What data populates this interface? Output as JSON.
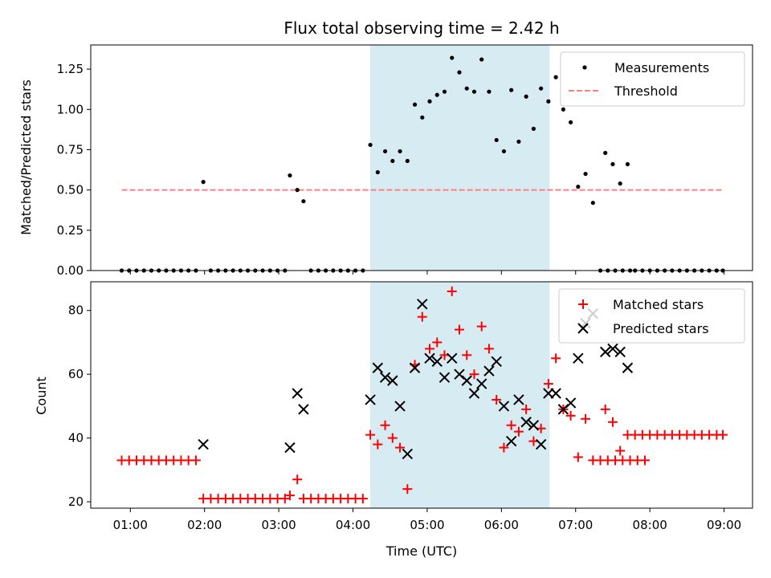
{
  "title": "Flux total observing time = 2.42 h",
  "xlabel": "Time (UTC)",
  "colors": {
    "highlight": "#add8e6",
    "measurement": "#000000",
    "threshold": "#ff7f7f",
    "matched": "#ff0000",
    "predicted": "#000000"
  },
  "chart_data": [
    {
      "type": "scatter",
      "ylabel": "Matched/Predicted stars",
      "xlim": [
        "00:28",
        "09:23"
      ],
      "ylim": [
        0,
        1.4
      ],
      "yticks": [
        0.0,
        0.25,
        0.5,
        0.75,
        1.0,
        1.25
      ],
      "ytick_labels": [
        "0.00",
        "0.25",
        "0.50",
        "0.75",
        "1.00",
        "1.25"
      ],
      "highlight_span": [
        "04:14",
        "06:39"
      ],
      "legend": {
        "position": "upper right",
        "entries": [
          "Measurements",
          "Threshold"
        ]
      },
      "threshold": {
        "name": "Threshold",
        "y": 0.5,
        "x_range": [
          "00:53",
          "08:59"
        ],
        "style": "dashed"
      },
      "series": [
        {
          "name": "Measurements",
          "marker": "dot",
          "points": [
            [
              "00:53",
              0
            ],
            [
              "00:59",
              0
            ],
            [
              "01:05",
              0
            ],
            [
              "01:11",
              0
            ],
            [
              "01:17",
              0
            ],
            [
              "01:23",
              0
            ],
            [
              "01:29",
              0
            ],
            [
              "01:35",
              0
            ],
            [
              "01:41",
              0
            ],
            [
              "01:47",
              0
            ],
            [
              "01:53",
              0
            ],
            [
              "01:59",
              0.55
            ],
            [
              "02:05",
              0
            ],
            [
              "02:11",
              0
            ],
            [
              "02:17",
              0
            ],
            [
              "02:23",
              0
            ],
            [
              "02:29",
              0
            ],
            [
              "02:35",
              0
            ],
            [
              "02:41",
              0
            ],
            [
              "02:47",
              0
            ],
            [
              "02:53",
              0
            ],
            [
              "02:59",
              0
            ],
            [
              "03:05",
              0
            ],
            [
              "03:09",
              0.59
            ],
            [
              "03:15",
              0.5
            ],
            [
              "03:20",
              0.43
            ],
            [
              "03:26",
              0
            ],
            [
              "03:32",
              0
            ],
            [
              "03:38",
              0
            ],
            [
              "03:44",
              0
            ],
            [
              "03:50",
              0
            ],
            [
              "03:56",
              0
            ],
            [
              "04:02",
              0
            ],
            [
              "04:08",
              0
            ],
            [
              "04:14",
              0.78
            ],
            [
              "04:20",
              0.61
            ],
            [
              "04:26",
              0.74
            ],
            [
              "04:32",
              0.68
            ],
            [
              "04:38",
              0.74
            ],
            [
              "04:44",
              0.68
            ],
            [
              "04:50",
              1.03
            ],
            [
              "04:56",
              0.95
            ],
            [
              "05:02",
              1.05
            ],
            [
              "05:08",
              1.09
            ],
            [
              "05:14",
              1.11
            ],
            [
              "05:20",
              1.32
            ],
            [
              "05:26",
              1.23
            ],
            [
              "05:32",
              1.13
            ],
            [
              "05:38",
              1.11
            ],
            [
              "05:44",
              1.31
            ],
            [
              "05:50",
              1.11
            ],
            [
              "05:56",
              0.81
            ],
            [
              "06:02",
              0.74
            ],
            [
              "06:08",
              1.12
            ],
            [
              "06:14",
              0.8
            ],
            [
              "06:20",
              1.08
            ],
            [
              "06:26",
              0.88
            ],
            [
              "06:32",
              1.13
            ],
            [
              "06:38",
              1.05
            ],
            [
              "06:44",
              1.2
            ],
            [
              "06:50",
              1.0
            ],
            [
              "06:56",
              0.92
            ],
            [
              "07:02",
              0.52
            ],
            [
              "07:08",
              0.6
            ],
            [
              "07:14",
              0.42
            ],
            [
              "07:20",
              0
            ],
            [
              "07:26",
              0
            ],
            [
              "07:32",
              0
            ],
            [
              "07:38",
              0
            ],
            [
              "07:44",
              0
            ],
            [
              "07:24",
              0.73
            ],
            [
              "07:30",
              0.66
            ],
            [
              "07:36",
              0.54
            ],
            [
              "07:42",
              0.66
            ],
            [
              "07:48",
              0
            ],
            [
              "07:54",
              0
            ],
            [
              "08:00",
              0
            ],
            [
              "08:06",
              0
            ],
            [
              "08:12",
              0
            ],
            [
              "08:18",
              0
            ],
            [
              "08:24",
              0
            ],
            [
              "08:30",
              0
            ],
            [
              "08:36",
              0
            ],
            [
              "08:42",
              0
            ],
            [
              "08:48",
              0
            ],
            [
              "08:54",
              0
            ],
            [
              "08:59",
              0
            ]
          ]
        }
      ]
    },
    {
      "type": "scatter",
      "ylabel": "Count",
      "xlim": [
        "00:28",
        "09:23"
      ],
      "ylim": [
        18,
        89
      ],
      "yticks": [
        20,
        40,
        60,
        80
      ],
      "ytick_labels": [
        "20",
        "40",
        "60",
        "80"
      ],
      "xticks": [
        "01:00",
        "02:00",
        "03:00",
        "04:00",
        "05:00",
        "06:00",
        "07:00",
        "08:00",
        "09:00"
      ],
      "xtick_labels": [
        "01:00",
        "02:00",
        "03:00",
        "04:00",
        "05:00",
        "06:00",
        "07:00",
        "08:00",
        "09:00"
      ],
      "highlight_span": [
        "04:14",
        "06:39"
      ],
      "legend": {
        "position": "upper right",
        "entries": [
          "Matched stars",
          "Predicted stars"
        ]
      },
      "series": [
        {
          "name": "Matched stars",
          "marker": "plus",
          "points": [
            [
              "00:53",
              33
            ],
            [
              "00:59",
              33
            ],
            [
              "01:05",
              33
            ],
            [
              "01:11",
              33
            ],
            [
              "01:17",
              33
            ],
            [
              "01:23",
              33
            ],
            [
              "01:29",
              33
            ],
            [
              "01:35",
              33
            ],
            [
              "01:41",
              33
            ],
            [
              "01:47",
              33
            ],
            [
              "01:53",
              33
            ],
            [
              "01:59",
              21
            ],
            [
              "02:05",
              21
            ],
            [
              "02:11",
              21
            ],
            [
              "02:17",
              21
            ],
            [
              "02:23",
              21
            ],
            [
              "02:29",
              21
            ],
            [
              "02:35",
              21
            ],
            [
              "02:41",
              21
            ],
            [
              "02:47",
              21
            ],
            [
              "02:53",
              21
            ],
            [
              "02:59",
              21
            ],
            [
              "03:05",
              21
            ],
            [
              "03:09",
              22
            ],
            [
              "03:15",
              27
            ],
            [
              "03:20",
              21
            ],
            [
              "03:26",
              21
            ],
            [
              "03:32",
              21
            ],
            [
              "03:38",
              21
            ],
            [
              "03:44",
              21
            ],
            [
              "03:50",
              21
            ],
            [
              "03:56",
              21
            ],
            [
              "04:02",
              21
            ],
            [
              "04:08",
              21
            ],
            [
              "04:14",
              41
            ],
            [
              "04:20",
              38
            ],
            [
              "04:26",
              44
            ],
            [
              "04:32",
              40
            ],
            [
              "04:38",
              37
            ],
            [
              "04:44",
              24
            ],
            [
              "04:50",
              63
            ],
            [
              "04:56",
              78
            ],
            [
              "05:02",
              68
            ],
            [
              "05:08",
              70
            ],
            [
              "05:14",
              66
            ],
            [
              "05:20",
              86
            ],
            [
              "05:26",
              74
            ],
            [
              "05:32",
              66
            ],
            [
              "05:38",
              60
            ],
            [
              "05:44",
              75
            ],
            [
              "05:50",
              68
            ],
            [
              "05:56",
              52
            ],
            [
              "06:02",
              37
            ],
            [
              "06:08",
              44
            ],
            [
              "06:14",
              42
            ],
            [
              "06:20",
              49
            ],
            [
              "06:26",
              39
            ],
            [
              "06:32",
              43
            ],
            [
              "06:38",
              57
            ],
            [
              "06:44",
              65
            ],
            [
              "06:50",
              49
            ],
            [
              "06:56",
              47
            ],
            [
              "07:02",
              34
            ],
            [
              "07:08",
              46
            ],
            [
              "07:14",
              33
            ],
            [
              "07:20",
              33
            ],
            [
              "07:26",
              33
            ],
            [
              "07:32",
              33
            ],
            [
              "07:38",
              33
            ],
            [
              "07:44",
              33
            ],
            [
              "07:50",
              33
            ],
            [
              "07:56",
              33
            ],
            [
              "07:24",
              49
            ],
            [
              "07:30",
              45
            ],
            [
              "07:36",
              36
            ],
            [
              "07:42",
              41
            ],
            [
              "07:48",
              41
            ],
            [
              "07:54",
              41
            ],
            [
              "08:00",
              41
            ],
            [
              "08:06",
              41
            ],
            [
              "08:12",
              41
            ],
            [
              "08:18",
              41
            ],
            [
              "08:24",
              41
            ],
            [
              "08:30",
              41
            ],
            [
              "08:36",
              41
            ],
            [
              "08:42",
              41
            ],
            [
              "08:48",
              41
            ],
            [
              "08:54",
              41
            ],
            [
              "08:59",
              41
            ]
          ]
        },
        {
          "name": "Predicted stars",
          "marker": "x",
          "points": [
            [
              "01:59",
              38
            ],
            [
              "03:09",
              37
            ],
            [
              "03:15",
              54
            ],
            [
              "03:20",
              49
            ],
            [
              "04:14",
              52
            ],
            [
              "04:20",
              62
            ],
            [
              "04:26",
              59
            ],
            [
              "04:32",
              58
            ],
            [
              "04:38",
              50
            ],
            [
              "04:44",
              35
            ],
            [
              "04:50",
              62
            ],
            [
              "04:56",
              82
            ],
            [
              "05:02",
              65
            ],
            [
              "05:08",
              64
            ],
            [
              "05:14",
              59
            ],
            [
              "05:20",
              65
            ],
            [
              "05:26",
              60
            ],
            [
              "05:32",
              58
            ],
            [
              "05:38",
              54
            ],
            [
              "05:44",
              57
            ],
            [
              "05:50",
              61
            ],
            [
              "05:56",
              64
            ],
            [
              "06:02",
              50
            ],
            [
              "06:08",
              39
            ],
            [
              "06:14",
              52
            ],
            [
              "06:20",
              45
            ],
            [
              "06:26",
              44
            ],
            [
              "06:32",
              38
            ],
            [
              "06:38",
              54
            ],
            [
              "06:44",
              54
            ],
            [
              "06:50",
              49
            ],
            [
              "06:56",
              51
            ],
            [
              "07:02",
              65
            ],
            [
              "07:08",
              76
            ],
            [
              "07:14",
              79
            ],
            [
              "07:24",
              67
            ],
            [
              "07:30",
              68
            ],
            [
              "07:36",
              67
            ],
            [
              "07:42",
              62
            ]
          ]
        }
      ]
    }
  ]
}
